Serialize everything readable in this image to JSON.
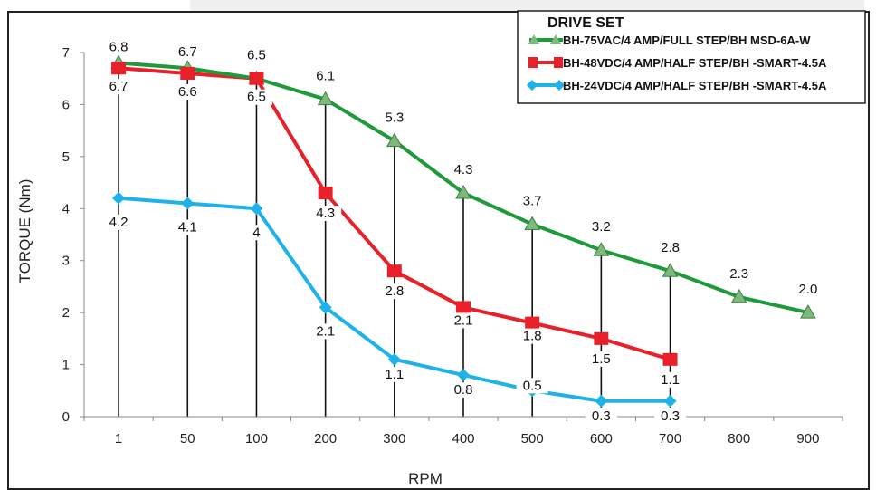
{
  "chart_data": {
    "type": "line",
    "title": "",
    "xlabel": "RPM",
    "ylabel": "TORQUE (Nm)",
    "categories": [
      "1",
      "50",
      "100",
      "200",
      "300",
      "400",
      "500",
      "600",
      "700",
      "800",
      "900"
    ],
    "ylim": [
      0,
      7
    ],
    "yticks": [
      "0",
      "1",
      "2",
      "3",
      "4",
      "5",
      "6",
      "7"
    ],
    "grid": false,
    "legend": {
      "title": "DRIVE SET",
      "placement": "top-right"
    },
    "series": [
      {
        "name": "BH-75VAC/4 AMP/FULL STEP/BH MSD-6A-W",
        "color": "#1f9a3a",
        "marker": "triangle",
        "marker_color": "#7cb97a",
        "values": [
          6.8,
          6.7,
          6.5,
          6.1,
          5.3,
          4.3,
          3.7,
          3.2,
          2.8,
          2.3,
          2.0
        ],
        "labels": [
          "6.8",
          "6.7",
          "6.5",
          "6.1",
          "5.3",
          "4.3",
          "3.7",
          "3.2",
          "2.8",
          "2.3",
          "2.0"
        ]
      },
      {
        "name": "BH-48VDC/4 AMP/HALF STEP/BH -SMART-4.5A",
        "color": "#e8202a",
        "marker": "square",
        "marker_color": "#e8202a",
        "values": [
          6.7,
          6.6,
          6.5,
          4.3,
          2.8,
          2.1,
          1.8,
          1.5,
          1.1,
          null,
          null
        ],
        "labels": [
          "6.7",
          "6.6",
          "6.5",
          "4.3",
          "2.8",
          "2.1",
          "1.8",
          "1.5",
          "1.1",
          "",
          ""
        ]
      },
      {
        "name": "BH-24VDC/4 AMP/HALF STEP/BH -SMART-4.5A",
        "color": "#1fb2ea",
        "marker": "diamond",
        "marker_color": "#1fb2ea",
        "values": [
          4.2,
          4.1,
          4.0,
          2.1,
          1.1,
          0.8,
          0.5,
          0.3,
          0.3,
          null,
          null
        ],
        "labels": [
          "4.2",
          "4.1",
          "4",
          "2.1",
          "1.1",
          "0.8",
          "0.5",
          "0.3",
          "0.3",
          "",
          ""
        ]
      }
    ]
  }
}
